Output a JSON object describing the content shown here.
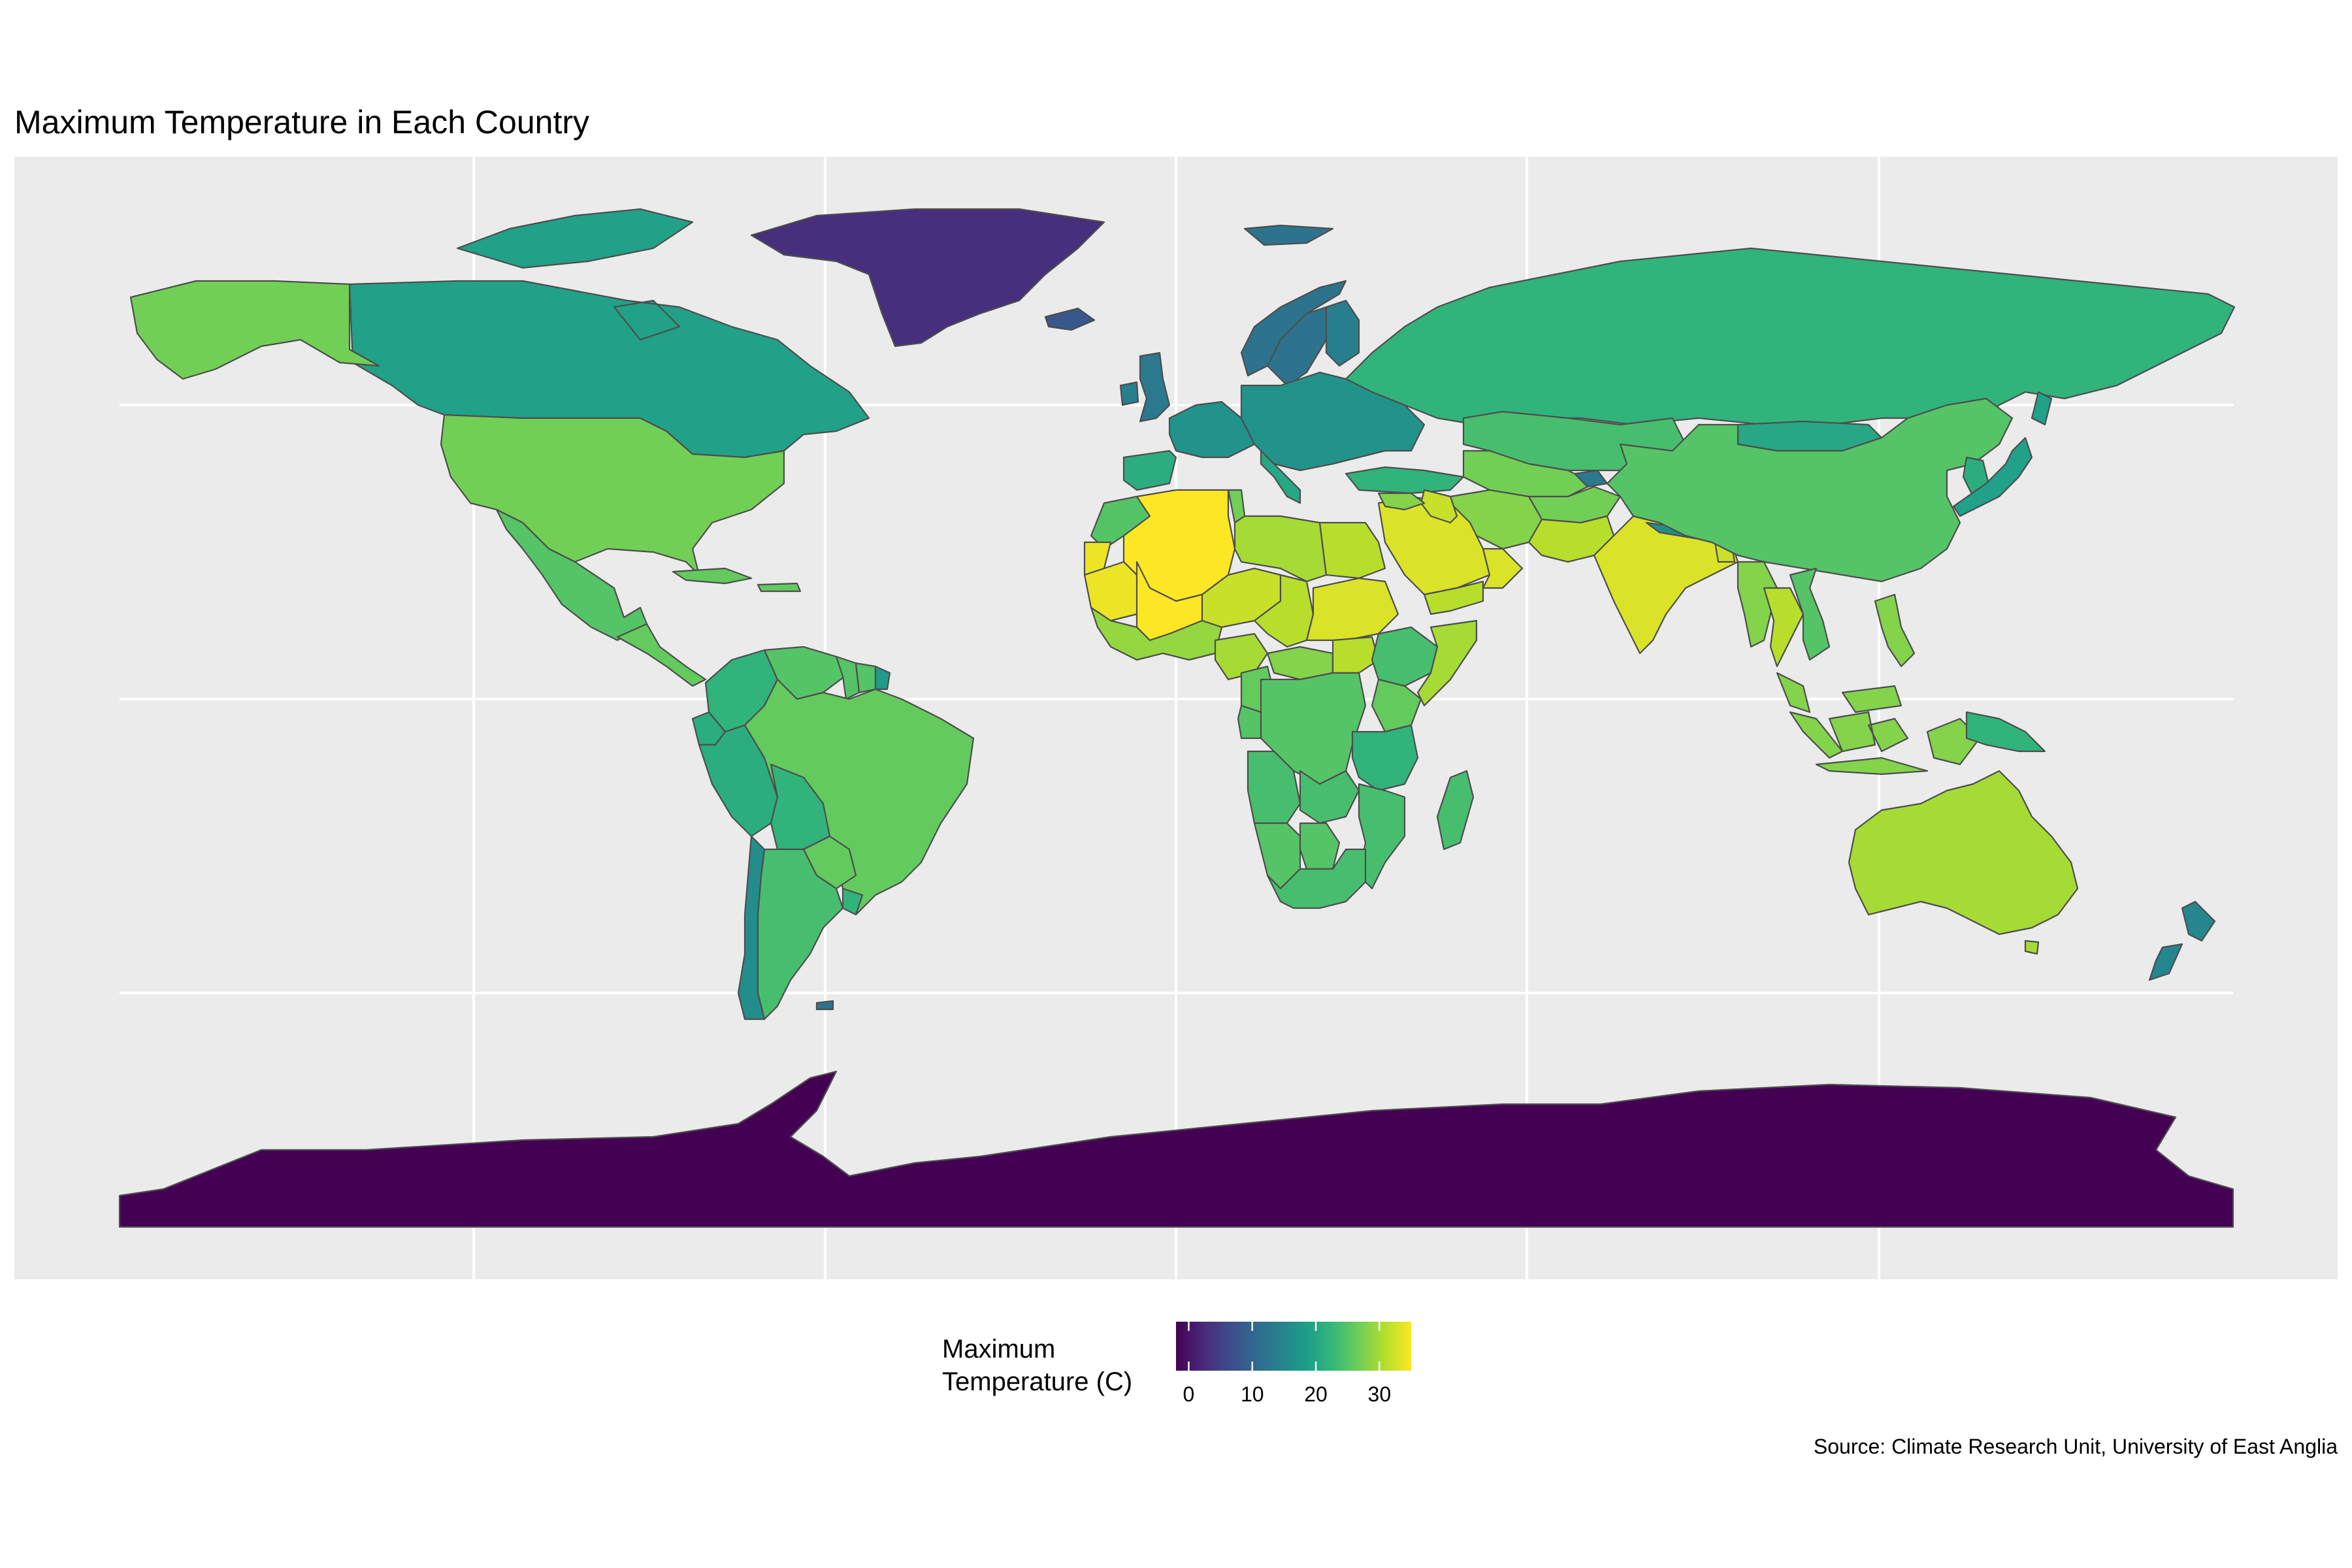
{
  "title": "Maximum Temperature in Each Country",
  "caption": "Source: Climate Research Unit, University of East Anglia",
  "legend": {
    "title_lines": [
      "Maximum",
      "Temperature (C)"
    ],
    "ticks": [
      0,
      10,
      20,
      30
    ],
    "tick_labels": [
      "0",
      "10",
      "20",
      "30"
    ],
    "range": [
      -2,
      35
    ],
    "palette": "viridis"
  },
  "colors": {
    "panel_background": "#ebebeb",
    "grid": "#ffffff",
    "country_border": "#4d4d4d",
    "viridis": [
      "#440154",
      "#482878",
      "#3e4a89",
      "#31688e",
      "#26828e",
      "#1f9e89",
      "#35b779",
      "#6ece58",
      "#b5de2b",
      "#fde725"
    ]
  },
  "chart_data": {
    "type": "choropleth",
    "title": "Maximum Temperature in Each Country",
    "value_unit": "C",
    "grid": true,
    "legend_position": "bottom",
    "regions": [
      {
        "name": "Greenland",
        "value": 3
      },
      {
        "name": "Antarctica",
        "value": -2
      },
      {
        "name": "Iceland",
        "value": 8
      },
      {
        "name": "Svalbard",
        "value": 12
      },
      {
        "name": "Canada",
        "value": 19
      },
      {
        "name": "Alaska",
        "value": 27
      },
      {
        "name": "United States",
        "value": 27
      },
      {
        "name": "Mexico",
        "value": 25
      },
      {
        "name": "Central America",
        "value": 26
      },
      {
        "name": "Caribbean",
        "value": 26
      },
      {
        "name": "Colombia",
        "value": 22
      },
      {
        "name": "Venezuela",
        "value": 25
      },
      {
        "name": "Guyana",
        "value": 25
      },
      {
        "name": "Suriname",
        "value": 25
      },
      {
        "name": "French Guiana",
        "value": 18
      },
      {
        "name": "Ecuador",
        "value": 21
      },
      {
        "name": "Peru",
        "value": 21
      },
      {
        "name": "Brazil",
        "value": 26
      },
      {
        "name": "Bolivia",
        "value": 22
      },
      {
        "name": "Paraguay",
        "value": 26
      },
      {
        "name": "Uruguay",
        "value": 22
      },
      {
        "name": "Argentina",
        "value": 24
      },
      {
        "name": "Chile",
        "value": 16
      },
      {
        "name": "Falkland Islands",
        "value": 12
      },
      {
        "name": "United Kingdom",
        "value": 13
      },
      {
        "name": "Ireland",
        "value": 14
      },
      {
        "name": "Norway",
        "value": 12
      },
      {
        "name": "Sweden",
        "value": 12
      },
      {
        "name": "Finland",
        "value": 14
      },
      {
        "name": "Western Europe",
        "value": 17
      },
      {
        "name": "Eastern Europe",
        "value": 17
      },
      {
        "name": "Spain",
        "value": 21
      },
      {
        "name": "Italy",
        "value": 20
      },
      {
        "name": "Turkey",
        "value": 22
      },
      {
        "name": "Russia",
        "value": 22
      },
      {
        "name": "Mongolia",
        "value": 20
      },
      {
        "name": "Kazakhstan",
        "value": 24
      },
      {
        "name": "Central Asia",
        "value": 27
      },
      {
        "name": "Tajikistan",
        "value": 13
      },
      {
        "name": "Afghanistan",
        "value": 27
      },
      {
        "name": "Iran",
        "value": 28
      },
      {
        "name": "Pakistan",
        "value": 31
      },
      {
        "name": "India",
        "value": 33
      },
      {
        "name": "Nepal",
        "value": 16
      },
      {
        "name": "Bangladesh",
        "value": 32
      },
      {
        "name": "China",
        "value": 25
      },
      {
        "name": "Korea",
        "value": 21
      },
      {
        "name": "Japan",
        "value": 19
      },
      {
        "name": "Myanmar",
        "value": 28
      },
      {
        "name": "Thailand",
        "value": 31
      },
      {
        "name": "Vietnam",
        "value": 25
      },
      {
        "name": "Malaysia",
        "value": 28
      },
      {
        "name": "Indonesia",
        "value": 28
      },
      {
        "name": "Philippines",
        "value": 28
      },
      {
        "name": "Papua New Guinea",
        "value": 22
      },
      {
        "name": "Australia",
        "value": 30
      },
      {
        "name": "New Zealand",
        "value": 15
      },
      {
        "name": "Saudi Arabia",
        "value": 33
      },
      {
        "name": "Yemen",
        "value": 31
      },
      {
        "name": "Oman",
        "value": 33
      },
      {
        "name": "Iraq",
        "value": 32
      },
      {
        "name": "Syria",
        "value": 28
      },
      {
        "name": "Morocco",
        "value": 25
      },
      {
        "name": "Algeria",
        "value": 35
      },
      {
        "name": "Tunisia",
        "value": 27
      },
      {
        "name": "Libya",
        "value": 30
      },
      {
        "name": "Egypt",
        "value": 31
      },
      {
        "name": "Western Sahara",
        "value": 34
      },
      {
        "name": "Mauritania",
        "value": 34
      },
      {
        "name": "Mali",
        "value": 35
      },
      {
        "name": "Niger",
        "value": 32
      },
      {
        "name": "Chad",
        "value": 31
      },
      {
        "name": "Sudan",
        "value": 33
      },
      {
        "name": "West Africa Coast",
        "value": 29
      },
      {
        "name": "Nigeria",
        "value": 30
      },
      {
        "name": "Central African Republic",
        "value": 28
      },
      {
        "name": "South Sudan",
        "value": 31
      },
      {
        "name": "Ethiopia",
        "value": 24
      },
      {
        "name": "Somalia",
        "value": 30
      },
      {
        "name": "Kenya",
        "value": 26
      },
      {
        "name": "Cameroon",
        "value": 26
      },
      {
        "name": "Gabon",
        "value": 25
      },
      {
        "name": "DR Congo",
        "value": 25
      },
      {
        "name": "Tanzania",
        "value": 22
      },
      {
        "name": "Angola",
        "value": 24
      },
      {
        "name": "Zambia",
        "value": 24
      },
      {
        "name": "Mozambique",
        "value": 24
      },
      {
        "name": "Namibia",
        "value": 25
      },
      {
        "name": "Botswana",
        "value": 25
      },
      {
        "name": "South Africa",
        "value": 24
      },
      {
        "name": "Madagascar",
        "value": 24
      }
    ]
  }
}
